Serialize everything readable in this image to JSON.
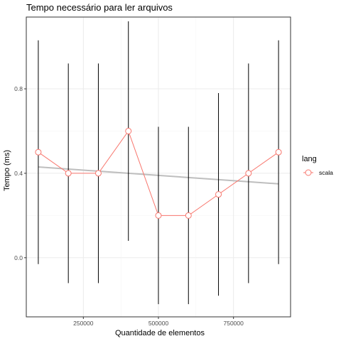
{
  "chart_data": {
    "type": "line",
    "title": "Tempo necessário para ler arquivos",
    "xlabel": "Quantidade de elementos",
    "ylabel": "Tempo (ms)",
    "xlim": [
      60000,
      940000
    ],
    "ylim": [
      -0.28,
      1.14
    ],
    "x_ticks": [
      250000,
      500000,
      750000
    ],
    "x_tick_labels": [
      "250000",
      "500000",
      "750000"
    ],
    "y_ticks": [
      0.0,
      0.4,
      0.8
    ],
    "y_tick_labels": [
      "0.0",
      "0.4",
      "0.8"
    ],
    "grid": true,
    "legend": {
      "title": "lang",
      "position": "right"
    },
    "series": [
      {
        "name": "scala",
        "color": "#F8766D",
        "x": [
          100000,
          200000,
          300000,
          400000,
          500000,
          600000,
          700000,
          800000,
          900000
        ],
        "y": [
          0.5,
          0.4,
          0.4,
          0.6,
          0.2,
          0.2,
          0.3,
          0.4,
          0.5
        ],
        "error_low": [
          -0.03,
          -0.12,
          -0.12,
          0.08,
          -0.22,
          -0.22,
          -0.18,
          -0.12,
          -0.03
        ],
        "error_high": [
          1.03,
          0.92,
          0.92,
          1.12,
          0.62,
          0.62,
          0.78,
          0.92,
          1.03
        ]
      }
    ],
    "trend_line": {
      "color": "#bebebe",
      "x": [
        100000,
        900000
      ],
      "y": [
        0.43,
        0.35
      ]
    }
  }
}
